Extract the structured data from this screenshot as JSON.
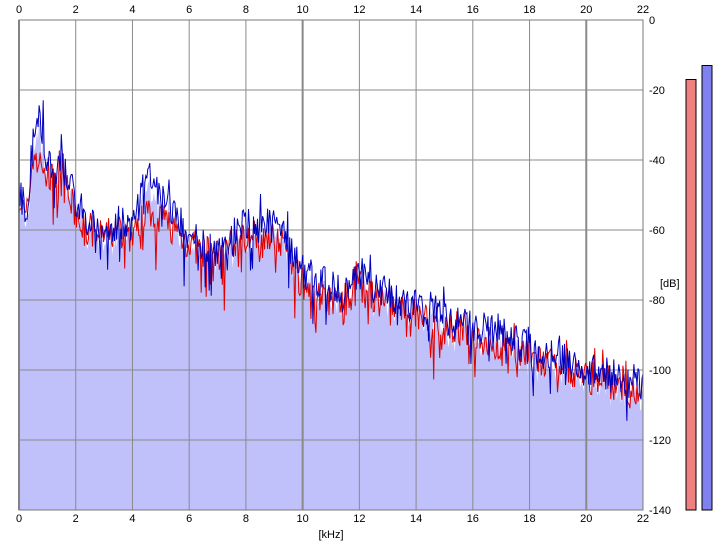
{
  "chart_data": {
    "type": "line",
    "xlabel": "[kHz]",
    "ylabel": "[dB]",
    "xlim": [
      0,
      22
    ],
    "ylim": [
      -140,
      0
    ],
    "x_ticks": [
      "0",
      "2",
      "4",
      "6",
      "8",
      "10",
      "12",
      "14",
      "16",
      "18",
      "20",
      "22"
    ],
    "y_ticks": [
      "0",
      "-20",
      "-40",
      "-60",
      "-80",
      "-100",
      "-120",
      "-140"
    ],
    "grid": true,
    "series": [
      {
        "color": "#e00000",
        "x": [
          0,
          0.25,
          0.5,
          0.75,
          1,
          1.25,
          1.5,
          1.75,
          2,
          2.5,
          3,
          3.5,
          4,
          4.5,
          5,
          5.5,
          6,
          6.5,
          7,
          7.5,
          8,
          8.5,
          9,
          9.5,
          10,
          10.5,
          11,
          11.5,
          12,
          12.5,
          13,
          13.5,
          14,
          14.5,
          15,
          15.5,
          16,
          16.5,
          17,
          17.5,
          18,
          18.5,
          19,
          19.5,
          20,
          20.5,
          21,
          21.5,
          22
        ],
        "values": [
          -50,
          -58,
          -38,
          -42,
          -44,
          -46,
          -40,
          -50,
          -56,
          -60,
          -62,
          -60,
          -62,
          -54,
          -56,
          -60,
          -64,
          -66,
          -68,
          -64,
          -62,
          -62,
          -60,
          -66,
          -76,
          -78,
          -80,
          -80,
          -76,
          -80,
          -80,
          -84,
          -84,
          -86,
          -88,
          -88,
          -90,
          -92,
          -94,
          -94,
          -96,
          -98,
          -100,
          -100,
          -102,
          -102,
          -104,
          -106,
          -106
        ]
      },
      {
        "color": "#0000c0",
        "x": [
          0,
          0.25,
          0.5,
          0.75,
          1,
          1.25,
          1.5,
          1.75,
          2,
          2.5,
          3,
          3.5,
          4,
          4.5,
          5,
          5.5,
          6,
          6.5,
          7,
          7.5,
          8,
          8.5,
          9,
          9.5,
          10,
          10.5,
          11,
          11.5,
          12,
          12.5,
          13,
          13.5,
          14,
          14.5,
          15,
          15.5,
          16,
          16.5,
          17,
          17.5,
          18,
          18.5,
          19,
          19.5,
          20,
          20.5,
          21,
          21.5,
          22
        ],
        "values": [
          -48,
          -56,
          -34,
          -28,
          -40,
          -44,
          -42,
          -46,
          -52,
          -58,
          -60,
          -58,
          -60,
          -44,
          -50,
          -56,
          -62,
          -64,
          -66,
          -62,
          -58,
          -60,
          -56,
          -64,
          -72,
          -74,
          -76,
          -78,
          -72,
          -76,
          -78,
          -80,
          -82,
          -82,
          -86,
          -86,
          -88,
          -88,
          -90,
          -92,
          -94,
          -96,
          -96,
          -98,
          -100,
          -100,
          -102,
          -104,
          -102
        ]
      }
    ],
    "fill_color": "#c0c0fa",
    "meters": [
      {
        "color": "#f08080",
        "top_db": -17
      },
      {
        "color": "#8080f0",
        "top_db": -13
      }
    ]
  }
}
